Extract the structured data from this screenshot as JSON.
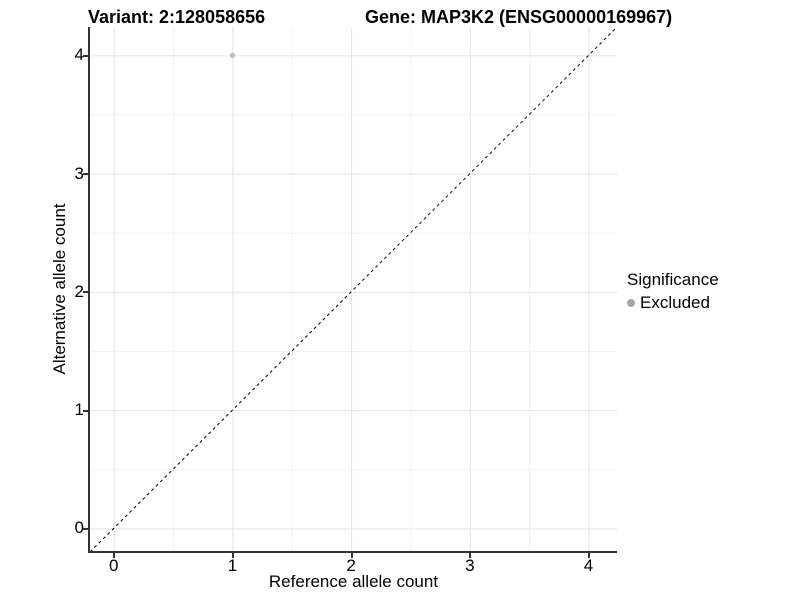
{
  "titles": {
    "variant": "Variant: 2:128058656",
    "gene": "Gene: MAP3K2 (ENSG00000169967)"
  },
  "legend": {
    "title": "Significance",
    "items": [
      {
        "label": "Excluded",
        "marker": "circle-icon",
        "color": "#a6a6a6"
      }
    ]
  },
  "chart_data": {
    "type": "scatter",
    "title_left": "Variant: 2:128058656",
    "title_right": "Gene: MAP3K2 (ENSG00000169967)",
    "xlabel": "Reference allele count",
    "ylabel": "Alternative allele count",
    "xlim": [
      -0.2,
      4.24
    ],
    "ylim": [
      -0.2,
      4.24
    ],
    "xticks": [
      0,
      1,
      2,
      3,
      4
    ],
    "yticks": [
      0,
      1,
      2,
      3,
      4
    ],
    "minor_ticks": [
      0.5,
      1.5,
      2.5,
      3.5
    ],
    "grid": "on",
    "legend_position": "right",
    "series": [
      {
        "name": "Excluded",
        "color": "#bdbdbd",
        "points": [
          {
            "x": 1,
            "y": 4
          }
        ]
      }
    ],
    "reference_line": {
      "kind": "identity y=x",
      "style": "dashed",
      "color": "#000000"
    }
  },
  "colors": {
    "background": "#ffffff",
    "grid_major": "#e3e3e3",
    "grid_minor": "#f0f0f0",
    "axis_line": "#333333",
    "point": "#bdbdbd",
    "legend_dot": "#a6a6a6",
    "dashed_line": "#000000"
  }
}
